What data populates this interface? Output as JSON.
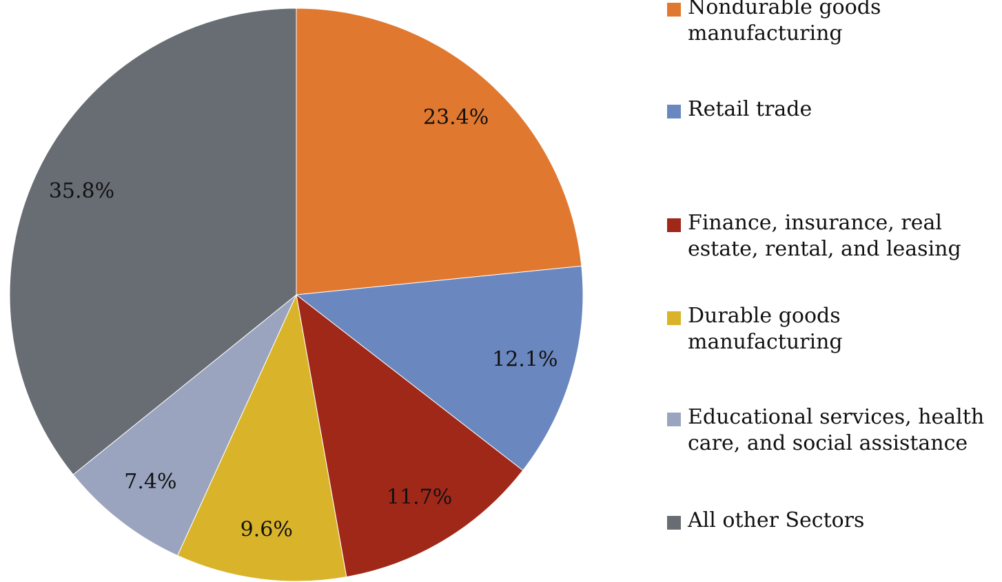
{
  "chart_data": {
    "type": "pie",
    "categories": [
      "Nondurable goods manufacturing",
      "Retail trade",
      "Finance, insurance, real estate, rental, and leasing",
      "Durable goods manufacturing",
      "Educational services, health care, and social assistance",
      "All other Sectors"
    ],
    "values": [
      23.4,
      12.1,
      11.7,
      9.6,
      7.4,
      35.8
    ],
    "value_labels": [
      "23.4%",
      "12.1%",
      "11.7%",
      "9.6%",
      "7.4%",
      "35.8%"
    ],
    "colors": [
      "#e07830",
      "#6a87c0",
      "#a02818",
      "#d9b42a",
      "#9aa4bf",
      "#686d74"
    ],
    "legend": "right"
  }
}
